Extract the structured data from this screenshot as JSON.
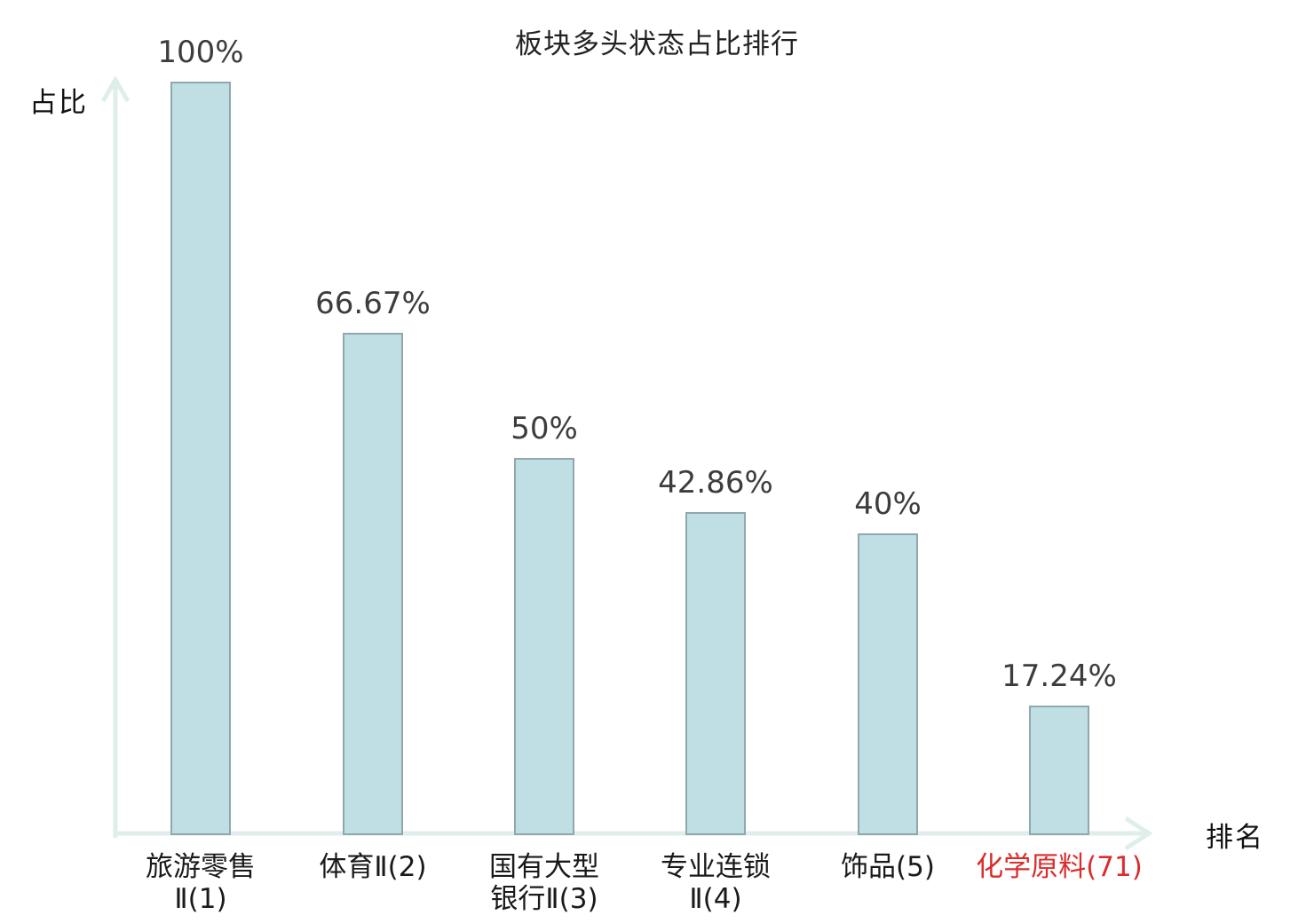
{
  "page": {
    "title": "板块多头状态占比排行"
  },
  "axes": {
    "y_label": "占比",
    "x_label": "排名"
  },
  "colors": {
    "background": "#ffffff",
    "axis": "#dfeeeb",
    "bar_fill": "#c0dfe4",
    "bar_border": "#8fa8ac",
    "value_text": "#3d3d3d",
    "label_text": "#1a1a1a",
    "highlight_text": "#db2c2c"
  },
  "chart_data": {
    "type": "bar",
    "title": "板块多头状态占比排行",
    "xlabel": "排名",
    "ylabel": "占比",
    "ylim": [
      0,
      100
    ],
    "grid": false,
    "legend": null,
    "categories": [
      "旅游零售Ⅱ(1)",
      "体育Ⅱ(2)",
      "国有大型银行Ⅱ(3)",
      "专业连锁Ⅱ(4)",
      "饰品(5)",
      "化学原料(71)"
    ],
    "category_lines": [
      "旅游零售\nⅡ(1)",
      "体育Ⅱ(2)",
      "国有大型\n银行Ⅱ(3)",
      "专业连锁\nⅡ(4)",
      "饰品(5)",
      "化学原料(71)"
    ],
    "values": [
      100,
      66.67,
      50,
      42.86,
      40,
      17.24
    ],
    "value_labels": [
      "100%",
      "66.67%",
      "50%",
      "42.86%",
      "40%",
      "17.24%"
    ],
    "ranks": [
      1,
      2,
      3,
      4,
      5,
      71
    ],
    "highlight_index": 5
  }
}
